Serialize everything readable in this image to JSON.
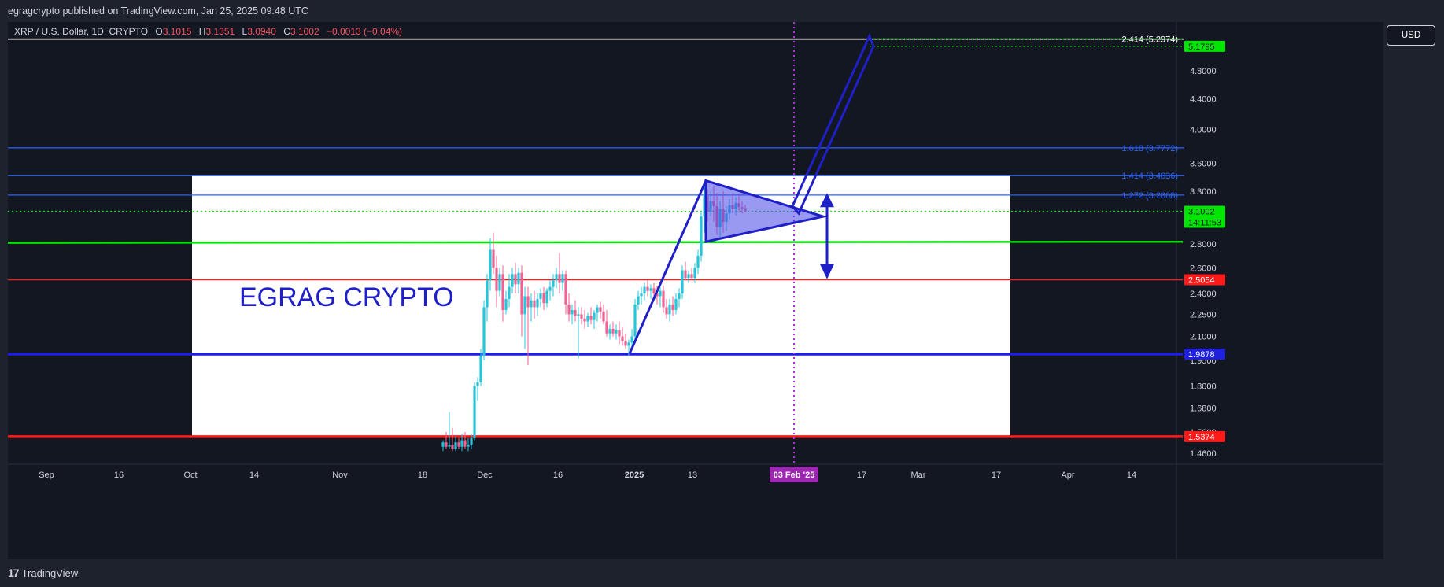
{
  "header": {
    "published_text": "egragcrypto published on TradingView.com, Jan 25, 2025 09:48 UTC"
  },
  "legend": {
    "symbol": "XRP / U.S. Dollar, 1D, CRYPTO",
    "open_label": "O",
    "open": "3.1015",
    "high_label": "H",
    "high": "3.1351",
    "low_label": "L",
    "low": "3.0940",
    "close_label": "C",
    "close": "3.1002",
    "change": "−0.0013 (−0.04%)"
  },
  "currency_button": "USD",
  "footer": {
    "brand": "TradingView",
    "logo_mark": "17"
  },
  "chart_data": {
    "type": "candlestick",
    "scale": "log",
    "y_axis_labels": [
      "4.8000",
      "4.4000",
      "4.0000",
      "3.6000",
      "3.3000",
      "2.8000",
      "2.6000",
      "2.4000",
      "2.2500",
      "2.1000",
      "1.9500",
      "1.8000",
      "1.6800",
      "1.5600",
      "1.4600"
    ],
    "x_axis_labels": [
      "Sep",
      "16",
      "Oct",
      "14",
      "Nov",
      "18",
      "Dec",
      "16",
      "2025",
      "13",
      "03 Feb '25",
      "17",
      "Mar",
      "17",
      "Apr",
      "14"
    ],
    "watermark_text": "EGRAG CRYPTO",
    "levels": [
      {
        "label": "2.414 (5.2974)",
        "value": 5.2974,
        "color": "#ffffff"
      },
      {
        "label": "1.618 (3.7772)",
        "value": 3.7772,
        "color": "#2962ff"
      },
      {
        "label": "1.414 (3.4636)",
        "value": 3.4636,
        "color": "#2962ff"
      },
      {
        "label": "1.272 (3.2608)",
        "value": 3.2608,
        "color": "#2962ff"
      }
    ],
    "price_tags": [
      {
        "text": "5.1795",
        "value": 5.1795,
        "bg": "#00e600",
        "fg": "#131722"
      },
      {
        "text": "3.1002",
        "value": 3.1002,
        "bg": "#00e600",
        "fg": "#131722",
        "sub": "14:11:53"
      },
      {
        "text": "2.5054",
        "value": 2.5054,
        "bg": "#ff1a1a",
        "fg": "#ffffff"
      },
      {
        "text": "1.9878",
        "value": 1.9878,
        "bg": "#1f1fe0",
        "fg": "#ffffff"
      },
      {
        "text": "1.5374",
        "value": 1.5374,
        "bg": "#ff1a1a",
        "fg": "#ffffff"
      }
    ],
    "highlighted_date": "03 Feb '25",
    "colors": {
      "up": "#26c6da",
      "down": "#f06292",
      "support_green": "#00e600",
      "support_red": "#ff1a1a",
      "support_blue": "#1f1fe0",
      "pattern": "#1f1fc8"
    },
    "candles": [
      {
        "x": 563,
        "o": 1.49,
        "h": 1.52,
        "l": 1.47,
        "c": 1.51
      },
      {
        "x": 567,
        "o": 1.51,
        "h": 1.56,
        "l": 1.48,
        "c": 1.49
      },
      {
        "x": 571,
        "o": 1.49,
        "h": 1.66,
        "l": 1.48,
        "c": 1.5
      },
      {
        "x": 575,
        "o": 1.5,
        "h": 1.58,
        "l": 1.47,
        "c": 1.48
      },
      {
        "x": 579,
        "o": 1.48,
        "h": 1.54,
        "l": 1.47,
        "c": 1.51
      },
      {
        "x": 583,
        "o": 1.51,
        "h": 1.53,
        "l": 1.48,
        "c": 1.49
      },
      {
        "x": 587,
        "o": 1.49,
        "h": 1.55,
        "l": 1.47,
        "c": 1.52
      },
      {
        "x": 591,
        "o": 1.52,
        "h": 1.56,
        "l": 1.48,
        "c": 1.49
      },
      {
        "x": 595,
        "o": 1.49,
        "h": 1.53,
        "l": 1.47,
        "c": 1.5
      },
      {
        "x": 599,
        "o": 1.5,
        "h": 1.55,
        "l": 1.48,
        "c": 1.53
      },
      {
        "x": 603,
        "o": 1.53,
        "h": 1.82,
        "l": 1.52,
        "c": 1.8
      },
      {
        "x": 607,
        "o": 1.8,
        "h": 1.85,
        "l": 1.72,
        "c": 1.82
      },
      {
        "x": 611,
        "o": 1.82,
        "h": 2.02,
        "l": 1.8,
        "c": 1.98
      },
      {
        "x": 615,
        "o": 1.98,
        "h": 2.35,
        "l": 1.95,
        "c": 2.3
      },
      {
        "x": 619,
        "o": 2.3,
        "h": 2.55,
        "l": 2.2,
        "c": 2.5
      },
      {
        "x": 623,
        "o": 2.5,
        "h": 2.85,
        "l": 2.42,
        "c": 2.75
      },
      {
        "x": 627,
        "o": 2.75,
        "h": 2.9,
        "l": 2.55,
        "c": 2.6
      },
      {
        "x": 631,
        "o": 2.6,
        "h": 2.7,
        "l": 2.3,
        "c": 2.42
      },
      {
        "x": 635,
        "o": 2.42,
        "h": 2.6,
        "l": 2.38,
        "c": 2.55
      },
      {
        "x": 639,
        "o": 2.55,
        "h": 2.62,
        "l": 2.2,
        "c": 2.28
      },
      {
        "x": 643,
        "o": 2.28,
        "h": 2.42,
        "l": 2.25,
        "c": 2.36
      },
      {
        "x": 647,
        "o": 2.36,
        "h": 2.55,
        "l": 2.3,
        "c": 2.45
      },
      {
        "x": 651,
        "o": 2.45,
        "h": 2.6,
        "l": 2.4,
        "c": 2.55
      },
      {
        "x": 655,
        "o": 2.55,
        "h": 2.64,
        "l": 2.4,
        "c": 2.47
      },
      {
        "x": 659,
        "o": 2.47,
        "h": 2.6,
        "l": 2.4,
        "c": 2.56
      },
      {
        "x": 663,
        "o": 2.56,
        "h": 2.62,
        "l": 2.1,
        "c": 2.25
      },
      {
        "x": 667,
        "o": 2.25,
        "h": 2.45,
        "l": 2.02,
        "c": 2.38
      },
      {
        "x": 671,
        "o": 2.38,
        "h": 2.45,
        "l": 1.92,
        "c": 2.3
      },
      {
        "x": 675,
        "o": 2.3,
        "h": 2.4,
        "l": 2.2,
        "c": 2.35
      },
      {
        "x": 679,
        "o": 2.35,
        "h": 2.42,
        "l": 2.22,
        "c": 2.3
      },
      {
        "x": 683,
        "o": 2.3,
        "h": 2.4,
        "l": 2.24,
        "c": 2.36
      },
      {
        "x": 687,
        "o": 2.36,
        "h": 2.44,
        "l": 2.3,
        "c": 2.4
      },
      {
        "x": 691,
        "o": 2.4,
        "h": 2.45,
        "l": 2.28,
        "c": 2.33
      },
      {
        "x": 695,
        "o": 2.33,
        "h": 2.44,
        "l": 2.3,
        "c": 2.42
      },
      {
        "x": 699,
        "o": 2.42,
        "h": 2.5,
        "l": 2.35,
        "c": 2.45
      },
      {
        "x": 703,
        "o": 2.45,
        "h": 2.55,
        "l": 2.38,
        "c": 2.5
      },
      {
        "x": 707,
        "o": 2.5,
        "h": 2.6,
        "l": 2.44,
        "c": 2.55
      },
      {
        "x": 711,
        "o": 2.55,
        "h": 2.72,
        "l": 2.4,
        "c": 2.48
      },
      {
        "x": 715,
        "o": 2.48,
        "h": 2.58,
        "l": 2.42,
        "c": 2.55
      },
      {
        "x": 719,
        "o": 2.55,
        "h": 2.58,
        "l": 2.25,
        "c": 2.32
      },
      {
        "x": 723,
        "o": 2.32,
        "h": 2.4,
        "l": 2.2,
        "c": 2.25
      },
      {
        "x": 727,
        "o": 2.25,
        "h": 2.32,
        "l": 2.18,
        "c": 2.28
      },
      {
        "x": 731,
        "o": 2.28,
        "h": 2.35,
        "l": 2.2,
        "c": 2.24
      },
      {
        "x": 735,
        "o": 2.24,
        "h": 2.3,
        "l": 1.96,
        "c": 2.25
      },
      {
        "x": 739,
        "o": 2.25,
        "h": 2.3,
        "l": 2.18,
        "c": 2.22
      },
      {
        "x": 743,
        "o": 2.22,
        "h": 2.28,
        "l": 2.15,
        "c": 2.2
      },
      {
        "x": 747,
        "o": 2.2,
        "h": 2.26,
        "l": 2.16,
        "c": 2.24
      },
      {
        "x": 751,
        "o": 2.24,
        "h": 2.3,
        "l": 2.18,
        "c": 2.21
      },
      {
        "x": 755,
        "o": 2.21,
        "h": 2.28,
        "l": 2.15,
        "c": 2.26
      },
      {
        "x": 759,
        "o": 2.26,
        "h": 2.32,
        "l": 2.2,
        "c": 2.3
      },
      {
        "x": 763,
        "o": 2.3,
        "h": 2.34,
        "l": 2.22,
        "c": 2.27
      },
      {
        "x": 767,
        "o": 2.27,
        "h": 2.32,
        "l": 2.18,
        "c": 2.2
      },
      {
        "x": 771,
        "o": 2.2,
        "h": 2.28,
        "l": 2.1,
        "c": 2.12
      },
      {
        "x": 775,
        "o": 2.12,
        "h": 2.18,
        "l": 2.08,
        "c": 2.15
      },
      {
        "x": 779,
        "o": 2.15,
        "h": 2.2,
        "l": 2.1,
        "c": 2.12
      },
      {
        "x": 783,
        "o": 2.12,
        "h": 2.18,
        "l": 2.08,
        "c": 2.14
      },
      {
        "x": 787,
        "o": 2.14,
        "h": 2.2,
        "l": 2.05,
        "c": 2.1
      },
      {
        "x": 791,
        "o": 2.1,
        "h": 2.16,
        "l": 2.04,
        "c": 2.07
      },
      {
        "x": 795,
        "o": 2.07,
        "h": 2.12,
        "l": 2.02,
        "c": 2.04
      },
      {
        "x": 799,
        "o": 2.04,
        "h": 2.08,
        "l": 1.98,
        "c": 2.06
      },
      {
        "x": 803,
        "o": 2.06,
        "h": 2.15,
        "l": 2.02,
        "c": 2.1
      },
      {
        "x": 807,
        "o": 2.1,
        "h": 2.36,
        "l": 2.08,
        "c": 2.32
      },
      {
        "x": 811,
        "o": 2.32,
        "h": 2.42,
        "l": 2.28,
        "c": 2.38
      },
      {
        "x": 815,
        "o": 2.38,
        "h": 2.45,
        "l": 2.32,
        "c": 2.4
      },
      {
        "x": 819,
        "o": 2.4,
        "h": 2.48,
        "l": 2.35,
        "c": 2.45
      },
      {
        "x": 823,
        "o": 2.45,
        "h": 2.5,
        "l": 2.38,
        "c": 2.42
      },
      {
        "x": 827,
        "o": 2.42,
        "h": 2.47,
        "l": 2.36,
        "c": 2.44
      },
      {
        "x": 831,
        "o": 2.44,
        "h": 2.48,
        "l": 2.38,
        "c": 2.4
      },
      {
        "x": 835,
        "o": 2.4,
        "h": 2.46,
        "l": 2.32,
        "c": 2.38
      },
      {
        "x": 839,
        "o": 2.38,
        "h": 2.45,
        "l": 2.3,
        "c": 2.42
      },
      {
        "x": 843,
        "o": 2.42,
        "h": 2.46,
        "l": 2.26,
        "c": 2.3
      },
      {
        "x": 847,
        "o": 2.3,
        "h": 2.36,
        "l": 2.22,
        "c": 2.25
      },
      {
        "x": 851,
        "o": 2.25,
        "h": 2.36,
        "l": 2.2,
        "c": 2.32
      },
      {
        "x": 855,
        "o": 2.32,
        "h": 2.38,
        "l": 2.24,
        "c": 2.28
      },
      {
        "x": 859,
        "o": 2.28,
        "h": 2.4,
        "l": 2.25,
        "c": 2.36
      },
      {
        "x": 863,
        "o": 2.36,
        "h": 2.44,
        "l": 2.3,
        "c": 2.4
      },
      {
        "x": 867,
        "o": 2.4,
        "h": 2.62,
        "l": 2.36,
        "c": 2.58
      },
      {
        "x": 871,
        "o": 2.58,
        "h": 2.65,
        "l": 2.5,
        "c": 2.52
      },
      {
        "x": 875,
        "o": 2.52,
        "h": 2.58,
        "l": 2.48,
        "c": 2.55
      },
      {
        "x": 879,
        "o": 2.55,
        "h": 2.6,
        "l": 2.5,
        "c": 2.52
      },
      {
        "x": 883,
        "o": 2.52,
        "h": 2.64,
        "l": 2.48,
        "c": 2.6
      },
      {
        "x": 887,
        "o": 2.6,
        "h": 2.75,
        "l": 2.55,
        "c": 2.7
      },
      {
        "x": 891,
        "o": 2.7,
        "h": 3.1,
        "l": 2.65,
        "c": 3.05
      },
      {
        "x": 895,
        "o": 3.05,
        "h": 3.4,
        "l": 2.9,
        "c": 3.25
      },
      {
        "x": 899,
        "o": 3.25,
        "h": 3.32,
        "l": 3.0,
        "c": 3.1
      },
      {
        "x": 903,
        "o": 3.1,
        "h": 3.3,
        "l": 3.05,
        "c": 3.2
      },
      {
        "x": 907,
        "o": 3.2,
        "h": 3.35,
        "l": 3.0,
        "c": 3.15
      },
      {
        "x": 911,
        "o": 3.15,
        "h": 3.28,
        "l": 2.88,
        "c": 2.95
      },
      {
        "x": 915,
        "o": 2.95,
        "h": 3.2,
        "l": 2.85,
        "c": 3.12
      },
      {
        "x": 919,
        "o": 3.12,
        "h": 3.3,
        "l": 2.9,
        "c": 3.0
      },
      {
        "x": 923,
        "o": 3.0,
        "h": 3.15,
        "l": 2.92,
        "c": 3.08
      },
      {
        "x": 927,
        "o": 3.08,
        "h": 3.22,
        "l": 3.02,
        "c": 3.16
      },
      {
        "x": 931,
        "o": 3.16,
        "h": 3.28,
        "l": 3.08,
        "c": 3.12
      },
      {
        "x": 935,
        "o": 3.12,
        "h": 3.24,
        "l": 3.06,
        "c": 3.18
      },
      {
        "x": 939,
        "o": 3.18,
        "h": 3.25,
        "l": 3.1,
        "c": 3.14
      },
      {
        "x": 943,
        "o": 3.14,
        "h": 3.2,
        "l": 3.08,
        "c": 3.13
      },
      {
        "x": 947,
        "o": 3.13,
        "h": 3.16,
        "l": 3.09,
        "c": 3.1
      }
    ]
  }
}
